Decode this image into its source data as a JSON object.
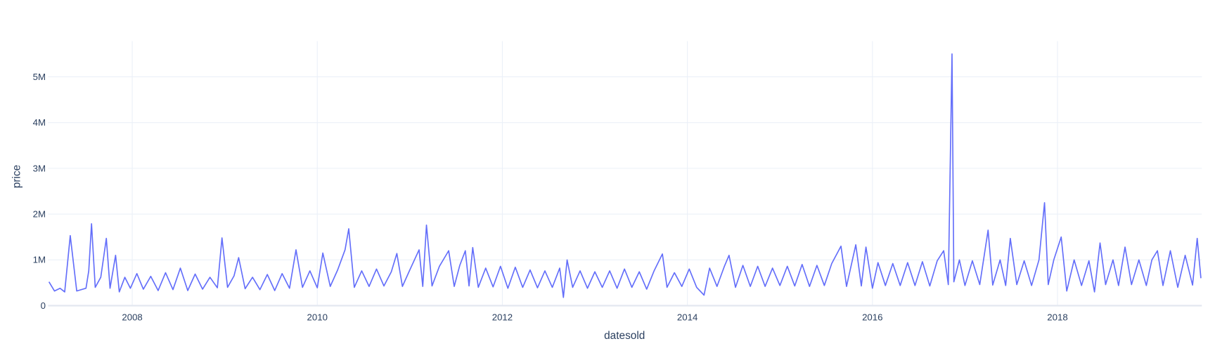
{
  "chart_data": {
    "type": "line",
    "x_label": "datesold",
    "y_label": "price",
    "xlim": [
      2007.09,
      2019.56
    ],
    "xticks": [
      2008,
      2010,
      2012,
      2014,
      2016,
      2018
    ],
    "ylim": [
      0,
      5780000
    ],
    "yticks": [
      {
        "value": 0,
        "label": "0"
      },
      {
        "value": 1000000,
        "label": "1M"
      },
      {
        "value": 2000000,
        "label": "2M"
      },
      {
        "value": 3000000,
        "label": "3M"
      },
      {
        "value": 4000000,
        "label": "4M"
      },
      {
        "value": 5000000,
        "label": "5M"
      }
    ],
    "grid": true,
    "series": [
      {
        "color": "#636efa",
        "x": [
          2007.1,
          2007.16,
          2007.22,
          2007.27,
          2007.33,
          2007.4,
          2007.5,
          2007.53,
          2007.56,
          2007.6,
          2007.66,
          2007.72,
          2007.76,
          2007.82,
          2007.86,
          2007.92,
          2007.98,
          2008.05,
          2008.12,
          2008.2,
          2008.28,
          2008.36,
          2008.44,
          2008.52,
          2008.6,
          2008.68,
          2008.76,
          2008.84,
          2008.92,
          2008.97,
          2009.03,
          2009.1,
          2009.15,
          2009.22,
          2009.3,
          2009.38,
          2009.46,
          2009.54,
          2009.62,
          2009.7,
          2009.77,
          2009.84,
          2009.92,
          2010.0,
          2010.06,
          2010.14,
          2010.22,
          2010.3,
          2010.34,
          2010.4,
          2010.48,
          2010.56,
          2010.64,
          2010.72,
          2010.8,
          2010.86,
          2010.92,
          2011.0,
          2011.1,
          2011.14,
          2011.18,
          2011.24,
          2011.32,
          2011.42,
          2011.48,
          2011.54,
          2011.6,
          2011.64,
          2011.68,
          2011.74,
          2011.82,
          2011.9,
          2011.98,
          2012.06,
          2012.14,
          2012.22,
          2012.3,
          2012.38,
          2012.46,
          2012.54,
          2012.62,
          2012.66,
          2012.7,
          2012.76,
          2012.84,
          2012.92,
          2013.0,
          2013.08,
          2013.16,
          2013.24,
          2013.32,
          2013.4,
          2013.48,
          2013.56,
          2013.64,
          2013.73,
          2013.78,
          2013.86,
          2013.94,
          2014.02,
          2014.1,
          2014.18,
          2014.24,
          2014.32,
          2014.4,
          2014.45,
          2014.52,
          2014.6,
          2014.68,
          2014.76,
          2014.84,
          2014.92,
          2015.0,
          2015.08,
          2015.16,
          2015.24,
          2015.32,
          2015.4,
          2015.48,
          2015.56,
          2015.66,
          2015.72,
          2015.82,
          2015.88,
          2015.93,
          2016.0,
          2016.06,
          2016.14,
          2016.22,
          2016.3,
          2016.38,
          2016.46,
          2016.54,
          2016.62,
          2016.7,
          2016.77,
          2016.82,
          2016.86,
          2016.88,
          2016.94,
          2017.0,
          2017.08,
          2017.16,
          2017.25,
          2017.3,
          2017.38,
          2017.44,
          2017.49,
          2017.56,
          2017.64,
          2017.72,
          2017.8,
          2017.86,
          2017.9,
          2017.96,
          2018.04,
          2018.1,
          2018.18,
          2018.26,
          2018.34,
          2018.4,
          2018.46,
          2018.52,
          2018.6,
          2018.66,
          2018.73,
          2018.8,
          2018.88,
          2018.96,
          2019.02,
          2019.08,
          2019.14,
          2019.22,
          2019.3,
          2019.38,
          2019.46,
          2019.51,
          2019.55
        ],
        "values": [
          520000,
          320000,
          380000,
          300000,
          1530000,
          320000,
          380000,
          760000,
          1790000,
          400000,
          620000,
          1470000,
          380000,
          1100000,
          300000,
          620000,
          380000,
          700000,
          360000,
          640000,
          330000,
          720000,
          350000,
          820000,
          330000,
          690000,
          360000,
          620000,
          390000,
          1480000,
          400000,
          650000,
          1050000,
          370000,
          620000,
          350000,
          680000,
          330000,
          700000,
          380000,
          1220000,
          400000,
          760000,
          390000,
          1150000,
          420000,
          780000,
          1220000,
          1680000,
          400000,
          760000,
          420000,
          800000,
          430000,
          740000,
          1140000,
          420000,
          780000,
          1220000,
          420000,
          1760000,
          430000,
          860000,
          1200000,
          420000,
          880000,
          1200000,
          430000,
          1270000,
          400000,
          820000,
          410000,
          860000,
          380000,
          840000,
          400000,
          780000,
          390000,
          760000,
          400000,
          820000,
          180000,
          1000000,
          400000,
          760000,
          380000,
          740000,
          400000,
          760000,
          380000,
          800000,
          400000,
          740000,
          360000,
          760000,
          1130000,
          400000,
          720000,
          420000,
          800000,
          400000,
          230000,
          820000,
          420000,
          860000,
          1100000,
          400000,
          880000,
          420000,
          860000,
          420000,
          820000,
          440000,
          860000,
          430000,
          900000,
          420000,
          880000,
          440000,
          920000,
          1300000,
          420000,
          1330000,
          430000,
          1280000,
          380000,
          940000,
          440000,
          920000,
          440000,
          940000,
          440000,
          960000,
          430000,
          980000,
          1200000,
          460000,
          5500000,
          520000,
          1000000,
          440000,
          980000,
          460000,
          1650000,
          450000,
          1000000,
          440000,
          1470000,
          460000,
          980000,
          440000,
          1000000,
          2250000,
          460000,
          1000000,
          1500000,
          320000,
          1000000,
          440000,
          980000,
          300000,
          1370000,
          460000,
          1000000,
          440000,
          1280000,
          460000,
          1000000,
          440000,
          1000000,
          1200000,
          440000,
          1200000,
          400000,
          1100000,
          450000,
          1470000,
          600000
        ]
      }
    ]
  }
}
